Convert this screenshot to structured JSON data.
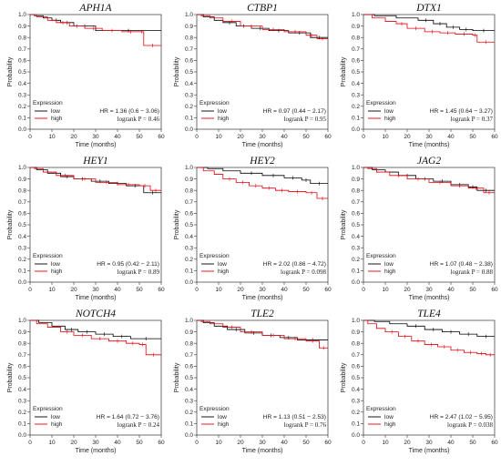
{
  "figure": {
    "type": "kaplan-meier-grid",
    "rows": 3,
    "cols": 3,
    "colors": {
      "low": "#000000",
      "high": "#e8000b",
      "axis": "#333333"
    }
  },
  "chart_data": [
    {
      "type": "line",
      "title": "APH1A",
      "xlabel": "Time (months)",
      "ylabel": "Probability",
      "xlim": [
        0,
        60
      ],
      "ylim": [
        0,
        1
      ],
      "xticks": [
        "0",
        "10",
        "20",
        "30",
        "40",
        "50",
        "60"
      ],
      "yticks": [
        "0.0",
        "0.1",
        "0.2",
        "0.3",
        "0.4",
        "0.5",
        "0.6",
        "0.7",
        "0.8",
        "0.9",
        "1.0"
      ],
      "legend_title": "Expression",
      "hr_text": "HR = 1.36 (0.6 − 3.06)",
      "logrank_text": "logrank P = 0.46",
      "series": [
        {
          "name": "low",
          "color": "#000000",
          "x": [
            0,
            2,
            6,
            10,
            14,
            20,
            30,
            60
          ],
          "y": [
            1,
            0.99,
            0.97,
            0.95,
            0.93,
            0.9,
            0.86,
            0.86
          ]
        },
        {
          "name": "high",
          "color": "#e8000b",
          "x": [
            0,
            3,
            8,
            12,
            18,
            25,
            33,
            42,
            50,
            52,
            60
          ],
          "y": [
            1,
            0.98,
            0.95,
            0.93,
            0.9,
            0.88,
            0.86,
            0.85,
            0.85,
            0.73,
            0.73
          ]
        }
      ]
    },
    {
      "type": "line",
      "title": "CTBP1",
      "xlabel": "Time (months)",
      "ylabel": "Probability",
      "xlim": [
        0,
        60
      ],
      "ylim": [
        0,
        1
      ],
      "xticks": [
        "0",
        "10",
        "20",
        "30",
        "40",
        "50",
        "60"
      ],
      "yticks": [
        "0.0",
        "0.1",
        "0.2",
        "0.3",
        "0.4",
        "0.5",
        "0.6",
        "0.7",
        "0.8",
        "0.9",
        "1.0"
      ],
      "legend_title": "Expression",
      "hr_text": "HR = 0.97 (0.44 − 2.17)",
      "logrank_text": "logrank P = 0.95",
      "series": [
        {
          "name": "low",
          "color": "#000000",
          "x": [
            0,
            3,
            8,
            12,
            18,
            25,
            33,
            42,
            52,
            60
          ],
          "y": [
            1,
            0.98,
            0.95,
            0.93,
            0.9,
            0.88,
            0.86,
            0.84,
            0.8,
            0.8
          ]
        },
        {
          "name": "high",
          "color": "#e8000b",
          "x": [
            0,
            2,
            6,
            12,
            20,
            30,
            40,
            50,
            55,
            60
          ],
          "y": [
            1,
            0.99,
            0.97,
            0.94,
            0.9,
            0.87,
            0.85,
            0.82,
            0.79,
            0.79
          ]
        }
      ]
    },
    {
      "type": "line",
      "title": "DTX1",
      "xlabel": "Time (months)",
      "ylabel": "Probability",
      "xlim": [
        0,
        60
      ],
      "ylim": [
        0,
        1
      ],
      "xticks": [
        "0",
        "10",
        "20",
        "30",
        "40",
        "50",
        "60"
      ],
      "yticks": [
        "0.0",
        "0.1",
        "0.2",
        "0.3",
        "0.4",
        "0.5",
        "0.6",
        "0.7",
        "0.8",
        "0.9",
        "1.0"
      ],
      "legend_title": "Expression",
      "hr_text": "HR = 1.45 (0.64 − 3.27)",
      "logrank_text": "logrank P = 0.37",
      "series": [
        {
          "name": "low",
          "color": "#000000",
          "x": [
            0,
            5,
            15,
            25,
            32,
            38,
            44,
            50,
            60
          ],
          "y": [
            1,
            0.99,
            0.97,
            0.95,
            0.92,
            0.89,
            0.87,
            0.86,
            0.86
          ]
        },
        {
          "name": "high",
          "color": "#e8000b",
          "x": [
            0,
            4,
            10,
            15,
            20,
            28,
            35,
            42,
            50,
            52,
            60
          ],
          "y": [
            1,
            0.97,
            0.94,
            0.92,
            0.88,
            0.85,
            0.84,
            0.83,
            0.82,
            0.76,
            0.76
          ]
        }
      ]
    },
    {
      "type": "line",
      "title": "HEY1",
      "xlabel": "Time (months)",
      "ylabel": "Probability",
      "xlim": [
        0,
        60
      ],
      "ylim": [
        0,
        1
      ],
      "xticks": [
        "0",
        "10",
        "20",
        "30",
        "40",
        "50",
        "60"
      ],
      "yticks": [
        "0.0",
        "0.1",
        "0.2",
        "0.3",
        "0.4",
        "0.5",
        "0.6",
        "0.7",
        "0.8",
        "0.9",
        "1.0"
      ],
      "legend_title": "Expression",
      "hr_text": "HR = 0.95 (0.42 − 2.11)",
      "logrank_text": "logrank P = 0.89",
      "series": [
        {
          "name": "low",
          "color": "#000000",
          "x": [
            0,
            3,
            8,
            14,
            20,
            28,
            36,
            44,
            52,
            60
          ],
          "y": [
            1,
            0.98,
            0.95,
            0.92,
            0.9,
            0.88,
            0.86,
            0.84,
            0.78,
            0.78
          ]
        },
        {
          "name": "high",
          "color": "#e8000b",
          "x": [
            0,
            2,
            6,
            12,
            20,
            30,
            40,
            50,
            55,
            60
          ],
          "y": [
            1,
            0.99,
            0.96,
            0.93,
            0.9,
            0.87,
            0.85,
            0.84,
            0.8,
            0.8
          ]
        }
      ]
    },
    {
      "type": "line",
      "title": "HEY2",
      "xlabel": "Time (months)",
      "ylabel": "Probability",
      "xlim": [
        0,
        60
      ],
      "ylim": [
        0,
        1
      ],
      "xticks": [
        "0",
        "10",
        "20",
        "30",
        "40",
        "50",
        "60"
      ],
      "yticks": [
        "0.0",
        "0.1",
        "0.2",
        "0.3",
        "0.4",
        "0.5",
        "0.6",
        "0.7",
        "0.8",
        "0.9",
        "1.0"
      ],
      "legend_title": "Expression",
      "hr_text": "HR = 2.02 (0.86 − 4.72)",
      "logrank_text": "logrank P = 0.098",
      "series": [
        {
          "name": "low",
          "color": "#000000",
          "x": [
            0,
            5,
            12,
            20,
            30,
            40,
            48,
            52,
            60
          ],
          "y": [
            1,
            0.99,
            0.97,
            0.95,
            0.93,
            0.91,
            0.89,
            0.86,
            0.86
          ]
        },
        {
          "name": "high",
          "color": "#e8000b",
          "x": [
            0,
            3,
            8,
            12,
            18,
            24,
            30,
            36,
            42,
            50,
            55,
            60
          ],
          "y": [
            1,
            0.97,
            0.94,
            0.9,
            0.87,
            0.84,
            0.82,
            0.8,
            0.79,
            0.78,
            0.73,
            0.73
          ]
        }
      ]
    },
    {
      "type": "line",
      "title": "JAG2",
      "xlabel": "Time (months)",
      "ylabel": "Probability",
      "xlim": [
        0,
        60
      ],
      "ylim": [
        0,
        1
      ],
      "xticks": [
        "0",
        "10",
        "20",
        "30",
        "40",
        "50",
        "60"
      ],
      "yticks": [
        "0.0",
        "0.1",
        "0.2",
        "0.3",
        "0.4",
        "0.5",
        "0.6",
        "0.7",
        "0.8",
        "0.9",
        "1.0"
      ],
      "legend_title": "Expression",
      "hr_text": "HR = 1.07 (0.48 − 2.38)",
      "logrank_text": "logrank P = 0.88",
      "series": [
        {
          "name": "low",
          "color": "#000000",
          "x": [
            0,
            4,
            10,
            16,
            24,
            32,
            40,
            48,
            52,
            60
          ],
          "y": [
            1,
            0.98,
            0.96,
            0.93,
            0.9,
            0.88,
            0.85,
            0.83,
            0.8,
            0.8
          ]
        },
        {
          "name": "high",
          "color": "#e8000b",
          "x": [
            0,
            2,
            6,
            12,
            20,
            30,
            40,
            48,
            55,
            60
          ],
          "y": [
            1,
            0.99,
            0.96,
            0.93,
            0.9,
            0.87,
            0.84,
            0.82,
            0.78,
            0.78
          ]
        }
      ]
    },
    {
      "type": "line",
      "title": "NOTCH4",
      "xlabel": "Time (months)",
      "ylabel": "Probability",
      "xlim": [
        0,
        60
      ],
      "ylim": [
        0,
        1
      ],
      "xticks": [
        "0",
        "10",
        "20",
        "30",
        "40",
        "50",
        "60"
      ],
      "yticks": [
        "0.0",
        "0.1",
        "0.2",
        "0.3",
        "0.4",
        "0.5",
        "0.6",
        "0.7",
        "0.8",
        "0.9",
        "1.0"
      ],
      "legend_title": "Expression",
      "hr_text": "HR = 1.64 (0.72 − 3.76)",
      "logrank_text": "logrank P = 0.24",
      "series": [
        {
          "name": "low",
          "color": "#000000",
          "x": [
            0,
            4,
            10,
            16,
            22,
            30,
            38,
            46,
            60
          ],
          "y": [
            1,
            0.98,
            0.95,
            0.92,
            0.9,
            0.88,
            0.86,
            0.84,
            0.84
          ]
        },
        {
          "name": "high",
          "color": "#e8000b",
          "x": [
            0,
            3,
            8,
            14,
            20,
            28,
            36,
            44,
            50,
            53,
            60
          ],
          "y": [
            1,
            0.97,
            0.94,
            0.9,
            0.87,
            0.84,
            0.82,
            0.8,
            0.79,
            0.7,
            0.7
          ]
        }
      ]
    },
    {
      "type": "line",
      "title": "TLE2",
      "xlabel": "Time (months)",
      "ylabel": "Probability",
      "xlim": [
        0,
        60
      ],
      "ylim": [
        0,
        1
      ],
      "xticks": [
        "0",
        "10",
        "20",
        "30",
        "40",
        "50",
        "60"
      ],
      "yticks": [
        "0.0",
        "0.1",
        "0.2",
        "0.3",
        "0.4",
        "0.5",
        "0.6",
        "0.7",
        "0.8",
        "0.9",
        "1.0"
      ],
      "legend_title": "Expression",
      "hr_text": "HR = 1.13 (0.51 − 2.53)",
      "logrank_text": "logrank P = 0.76",
      "series": [
        {
          "name": "low",
          "color": "#000000",
          "x": [
            0,
            3,
            8,
            14,
            22,
            30,
            38,
            46,
            60
          ],
          "y": [
            1,
            0.98,
            0.95,
            0.92,
            0.89,
            0.87,
            0.85,
            0.83,
            0.83
          ]
        },
        {
          "name": "high",
          "color": "#e8000b",
          "x": [
            0,
            2,
            6,
            12,
            20,
            30,
            40,
            50,
            56,
            60
          ],
          "y": [
            1,
            0.99,
            0.97,
            0.94,
            0.9,
            0.87,
            0.84,
            0.82,
            0.76,
            0.76
          ]
        }
      ]
    },
    {
      "type": "line",
      "title": "TLE4",
      "xlabel": "Time (months)",
      "ylabel": "Probability",
      "xlim": [
        0,
        60
      ],
      "ylim": [
        0,
        1
      ],
      "xticks": [
        "0",
        "10",
        "20",
        "30",
        "40",
        "50",
        "60"
      ],
      "yticks": [
        "0.0",
        "0.1",
        "0.2",
        "0.3",
        "0.4",
        "0.5",
        "0.6",
        "0.7",
        "0.8",
        "0.9",
        "1.0"
      ],
      "legend_title": "Expression",
      "hr_text": "HR = 2.47 (1.02 − 5.95)",
      "logrank_text": "logrank P = 0.038",
      "series": [
        {
          "name": "low",
          "color": "#000000",
          "x": [
            0,
            5,
            12,
            20,
            28,
            36,
            44,
            52,
            60
          ],
          "y": [
            1,
            0.99,
            0.97,
            0.95,
            0.92,
            0.9,
            0.88,
            0.86,
            0.86
          ]
        },
        {
          "name": "high",
          "color": "#e8000b",
          "x": [
            0,
            2,
            6,
            10,
            16,
            22,
            28,
            34,
            40,
            46,
            52,
            56,
            60
          ],
          "y": [
            1,
            0.97,
            0.93,
            0.9,
            0.86,
            0.82,
            0.79,
            0.77,
            0.74,
            0.72,
            0.71,
            0.7,
            0.7
          ]
        }
      ]
    }
  ]
}
